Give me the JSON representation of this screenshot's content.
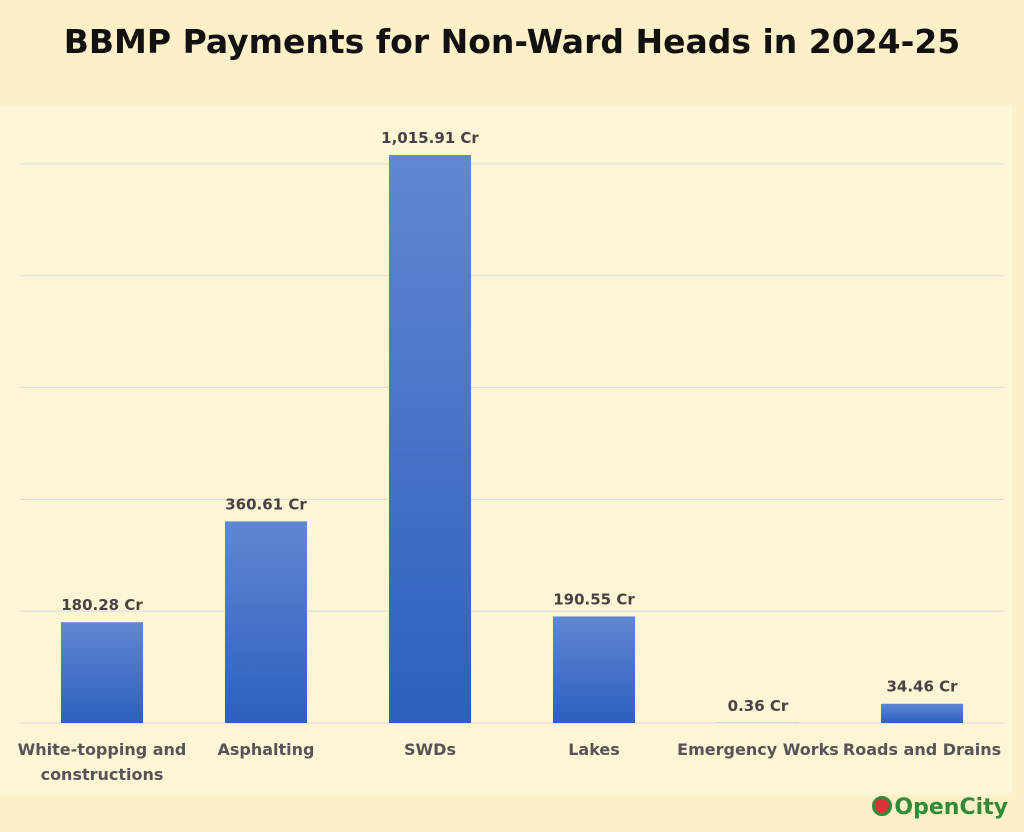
{
  "chart_data": {
    "type": "bar",
    "title": "BBMP Payments for Non-Ward Heads in 2024-25",
    "categories": [
      "White-topping and constructions",
      "Asphalting",
      "SWDs",
      "Lakes",
      "Emergency Works",
      "Roads and Drains"
    ],
    "values": [
      180.28,
      360.61,
      1015.91,
      190.55,
      0.36,
      34.46
    ],
    "value_labels": [
      "180.28 Cr",
      "360.61 Cr",
      "1,015.91 Cr",
      "190.55 Cr",
      "0.36 Cr",
      "34.46 Cr"
    ],
    "gradient": [
      "#5f88d2",
      "#2e5fbe"
    ],
    "ylim": [
      0,
      1100
    ],
    "yticks": [
      0,
      200,
      400,
      600,
      800,
      1000
    ],
    "grid": true,
    "logo": "OpenCity"
  }
}
